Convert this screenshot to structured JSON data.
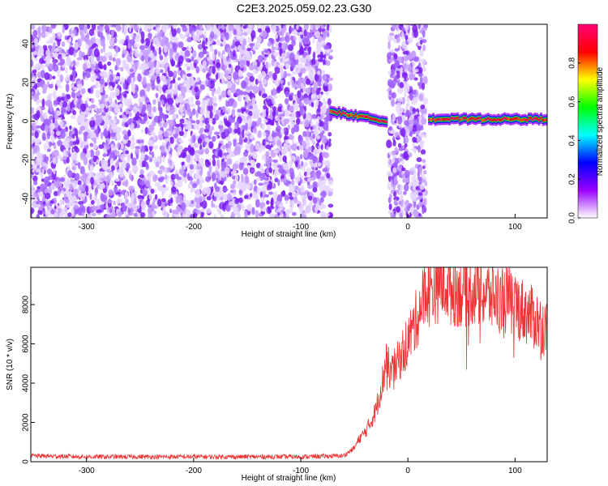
{
  "title": "C2E3.2025.059.02.23.G30",
  "chart_data": [
    {
      "type": "heatmap",
      "xlabel": "Height of straight line (km)",
      "ylabel": "Frequency (Hz)",
      "xlim": [
        -352,
        130
      ],
      "ylim": [
        -50,
        50
      ],
      "xticks": [
        -300,
        -200,
        -100,
        0,
        100
      ],
      "yticks": [
        -40,
        -20,
        0,
        20,
        40
      ],
      "colorbar": {
        "label": "Normalized spectral amplitude",
        "range": [
          0.0,
          1.0
        ],
        "ticks": [
          0.0,
          0.2,
          0.4,
          0.6,
          0.8
        ],
        "colormap": [
          "#ffffff",
          "#9900ff",
          "#0000ff",
          "#00ffff",
          "#00ff00",
          "#ffff00",
          "#ff0000",
          "#ff0077"
        ]
      },
      "regions": [
        {
          "name": "noise",
          "x_range": [
            -352,
            -72
          ],
          "y_range": [
            -50,
            50
          ]
        },
        {
          "name": "noise",
          "x_range": [
            -18,
            17
          ],
          "y_range": [
            -50,
            50
          ]
        },
        {
          "name": "signal-track",
          "x_range": [
            -72,
            -20
          ],
          "freq_start": 5,
          "freq_end": 0
        },
        {
          "name": "signal-track",
          "x_range": [
            20,
            130
          ],
          "freq_start": 1,
          "freq_end": 1
        }
      ]
    },
    {
      "type": "line",
      "xlabel": "Height of straight line (km)",
      "ylabel": "SNR (10 * v/v)",
      "xlim": [
        -352,
        130
      ],
      "ylim": [
        0,
        9900
      ],
      "xticks": [
        -300,
        -200,
        -100,
        0,
        100
      ],
      "yticks": [
        0,
        2000,
        4000,
        6000,
        8000
      ],
      "color": "#ee3333",
      "series": [
        {
          "x": [
            -352,
            -300,
            -250,
            -200,
            -150,
            -100,
            -60,
            -50,
            -45,
            -40,
            -35,
            -30,
            -25,
            -20,
            -15,
            -10,
            -5,
            0,
            5,
            10,
            15,
            20,
            25,
            30,
            35,
            40,
            50,
            60,
            70,
            80,
            90,
            100,
            110,
            120,
            130
          ],
          "values": [
            300,
            250,
            250,
            250,
            250,
            250,
            300,
            700,
            1200,
            1500,
            2000,
            2600,
            3800,
            5000,
            4500,
            5000,
            5600,
            6200,
            6800,
            7600,
            8400,
            8700,
            8900,
            9000,
            9100,
            8800,
            8700,
            8800,
            8600,
            8400,
            8300,
            8000,
            7600,
            7200,
            6700
          ]
        }
      ]
    }
  ]
}
